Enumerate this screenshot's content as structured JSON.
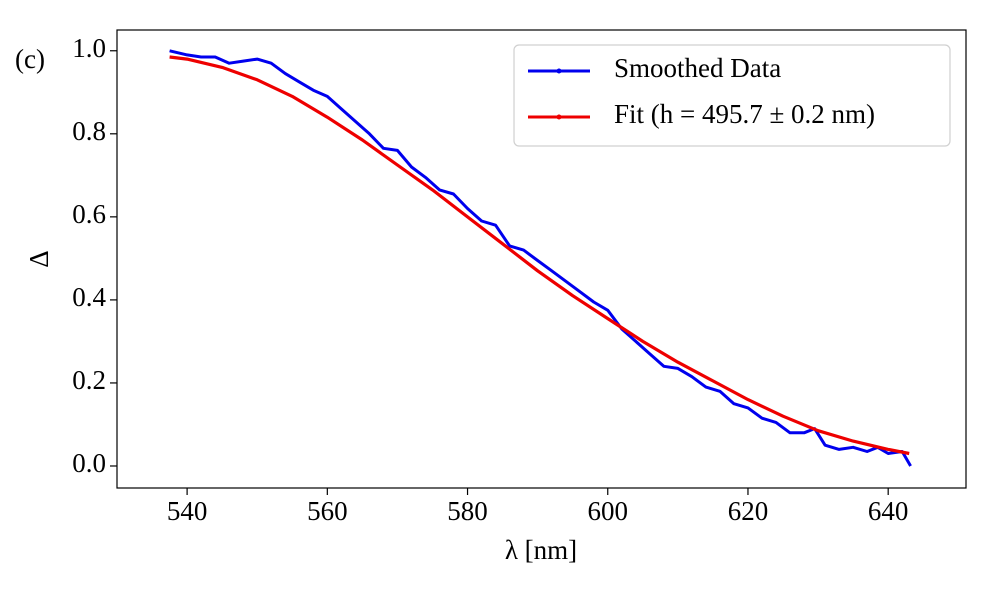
{
  "chart_data": {
    "type": "line",
    "annotation": "(c)",
    "xlabel": "λ [nm]",
    "ylabel": "Δ",
    "xlim": [
      530,
      651.1
    ],
    "ylim": [
      -0.053,
      1.05
    ],
    "xticks": [
      540,
      560,
      580,
      600,
      620,
      640
    ],
    "yticks": [
      {
        "value": 0,
        "label": "0.0"
      },
      0.2,
      0.4,
      0.6,
      0.8,
      {
        "value": 1,
        "label": "1.0"
      }
    ],
    "legend": "upper right",
    "series": [
      {
        "name": "Smoothed Data",
        "color": "#0000ee",
        "x": [
          537.5,
          540,
          542,
          544,
          546,
          548,
          550,
          552,
          554,
          556,
          558,
          560,
          562,
          564,
          566,
          568,
          570,
          572,
          574,
          576,
          578,
          580,
          582,
          584,
          586,
          588,
          590,
          592,
          594,
          596,
          598,
          600,
          602,
          604,
          606,
          608,
          610,
          612,
          614,
          616,
          618,
          620,
          622,
          624,
          626,
          628,
          629.5,
          631,
          633,
          635,
          637,
          638.5,
          640,
          642,
          643.2
        ],
        "values": [
          1.0,
          0.99,
          0.985,
          0.985,
          0.97,
          0.975,
          0.98,
          0.97,
          0.945,
          0.925,
          0.905,
          0.89,
          0.86,
          0.83,
          0.8,
          0.765,
          0.76,
          0.72,
          0.695,
          0.665,
          0.655,
          0.62,
          0.59,
          0.58,
          0.53,
          0.52,
          0.495,
          0.47,
          0.445,
          0.42,
          0.395,
          0.375,
          0.33,
          0.3,
          0.27,
          0.24,
          0.235,
          0.215,
          0.19,
          0.18,
          0.15,
          0.14,
          0.115,
          0.105,
          0.08,
          0.08,
          0.09,
          0.05,
          0.04,
          0.045,
          0.035,
          0.045,
          0.03,
          0.035,
          0.0
        ]
      },
      {
        "name": "Fit (h = 495.7 ± 0.2 nm)",
        "color": "#ee0000",
        "x": [
          537.5,
          540,
          545,
          550,
          555,
          560,
          565,
          570,
          575,
          580,
          585,
          590,
          595,
          600,
          605,
          610,
          615,
          620,
          625,
          630,
          635,
          640,
          643
        ],
        "values": [
          0.985,
          0.98,
          0.96,
          0.93,
          0.89,
          0.84,
          0.785,
          0.725,
          0.665,
          0.6,
          0.535,
          0.47,
          0.41,
          0.355,
          0.3,
          0.25,
          0.205,
          0.16,
          0.12,
          0.085,
          0.06,
          0.04,
          0.03
        ]
      }
    ]
  }
}
